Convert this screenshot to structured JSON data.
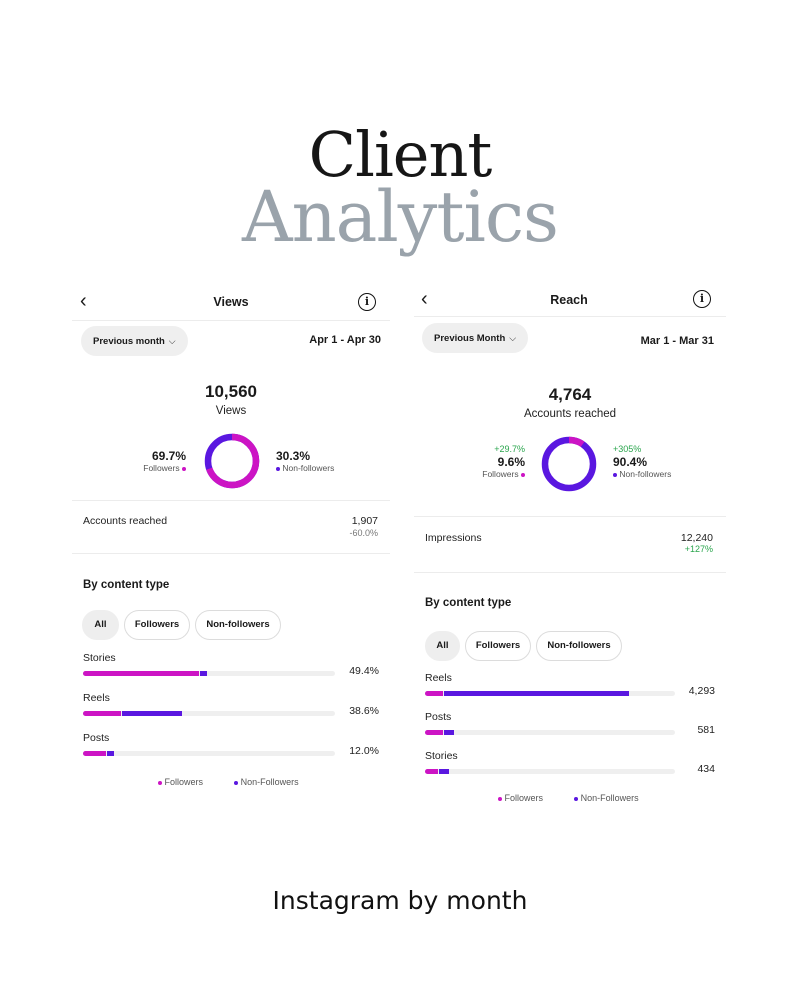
{
  "hero": {
    "line1": "Client",
    "line2": "Analytics"
  },
  "footer": "Instagram by month",
  "colors": {
    "followers": "#cc14c4",
    "non_followers": "#5a17e0",
    "track": "#efefef",
    "positive": "#2aa54d"
  },
  "views_panel": {
    "title": "Views",
    "back_icon": "chevron-left-icon",
    "info_icon": "info-icon",
    "filter_label": "Previous month",
    "date_range": "Apr 1 - Apr 30",
    "total": "10,560",
    "total_label": "Views",
    "followers": {
      "pct": "69.7%",
      "label": "Followers",
      "fraction": 0.697
    },
    "non_followers": {
      "pct": "30.3%",
      "label": "Non-followers",
      "fraction": 0.303
    },
    "metric": {
      "label": "Accounts reached",
      "value": "1,907",
      "change": "-60.0%"
    },
    "section_title": "By content type",
    "chips": [
      "All",
      "Followers",
      "Non-followers"
    ],
    "rows": [
      {
        "label": "Stories",
        "value": "49.4%",
        "followers": 0.46,
        "non_followers": 0.03
      },
      {
        "label": "Reels",
        "value": "38.6%",
        "followers": 0.15,
        "non_followers": 0.24
      },
      {
        "label": "Posts",
        "value": "12.0%",
        "followers": 0.09,
        "non_followers": 0.03
      }
    ],
    "legend": {
      "followers": "Followers",
      "non_followers": "Non-Followers"
    }
  },
  "reach_panel": {
    "title": "Reach",
    "back_icon": "chevron-left-icon",
    "info_icon": "info-icon",
    "filter_label": "Previous Month",
    "date_range": "Mar 1 - Mar 31",
    "total": "4,764",
    "total_label": "Accounts reached",
    "followers": {
      "delta": "+29.7%",
      "pct": "9.6%",
      "label": "Followers",
      "fraction": 0.096
    },
    "non_followers": {
      "delta": "+305%",
      "pct": "90.4%",
      "label": "Non-followers",
      "fraction": 0.904
    },
    "metric": {
      "label": "Impressions",
      "value": "12,240",
      "change": "+127%"
    },
    "section_title": "By content type",
    "chips": [
      "All",
      "Followers",
      "Non-followers"
    ],
    "rows": [
      {
        "label": "Reels",
        "value": "4,293",
        "followers": 0.07,
        "non_followers": 0.74
      },
      {
        "label": "Posts",
        "value": "581",
        "followers": 0.07,
        "non_followers": 0.04
      },
      {
        "label": "Stories",
        "value": "434",
        "followers": 0.05,
        "non_followers": 0.04
      }
    ],
    "legend": {
      "followers": "Followers",
      "non_followers": "Non-Followers"
    }
  }
}
